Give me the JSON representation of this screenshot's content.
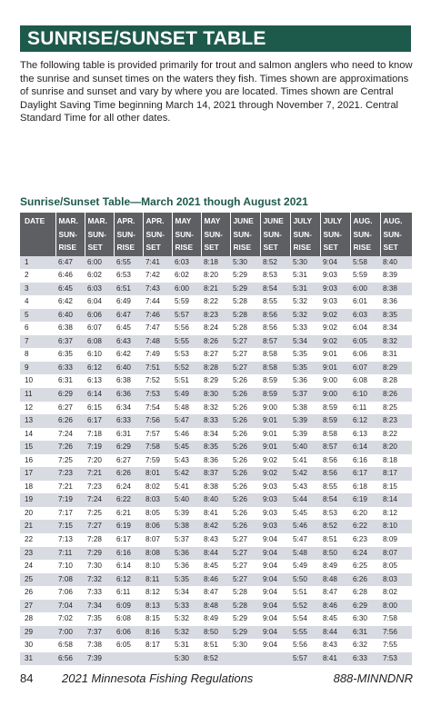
{
  "title": "SUNRISE/SUNSET TABLE",
  "intro": "The following table is provided primarily for trout and salmon anglers who need to know the sunrise and sunset times on the waters they fish. Times shown are approximations of sunrise and sunset and vary by where you are located. Times shown are Central Daylight Saving Time beginning March 14, 2021 through November 7, 2021. Central Standard Time for all other dates.",
  "table_title": "Sunrise/Sunset Table—March 2021 though August 2021",
  "headers": [
    [
      "DATE"
    ],
    [
      "MAR.",
      "SUN-",
      "RISE"
    ],
    [
      "MAR.",
      "SUN-",
      "SET"
    ],
    [
      "APR.",
      "SUN-",
      "RISE"
    ],
    [
      "APR.",
      "SUN-",
      "SET"
    ],
    [
      "MAY",
      "SUN-",
      "RISE"
    ],
    [
      "MAY",
      "SUN-",
      "SET"
    ],
    [
      "JUNE",
      "SUN-",
      "RISE"
    ],
    [
      "JUNE",
      "SUN-",
      "SET"
    ],
    [
      "JULY",
      "SUN-",
      "RISE"
    ],
    [
      "JULY",
      "SUN-",
      "SET"
    ],
    [
      "AUG.",
      "SUN-",
      "RISE"
    ],
    [
      "AUG.",
      "SUN-",
      "SET"
    ]
  ],
  "rows": [
    [
      "1",
      "6:47",
      "6:00",
      "6:55",
      "7:41",
      "6:03",
      "8:18",
      "5:30",
      "8:52",
      "5:30",
      "9:04",
      "5:58",
      "8:40"
    ],
    [
      "2",
      "6:46",
      "6:02",
      "6:53",
      "7:42",
      "6:02",
      "8:20",
      "5:29",
      "8:53",
      "5:31",
      "9:03",
      "5:59",
      "8:39"
    ],
    [
      "3",
      "6:45",
      "6:03",
      "6:51",
      "7:43",
      "6:00",
      "8:21",
      "5:29",
      "8:54",
      "5:31",
      "9:03",
      "6:00",
      "8:38"
    ],
    [
      "4",
      "6:42",
      "6:04",
      "6:49",
      "7:44",
      "5:59",
      "8:22",
      "5:28",
      "8:55",
      "5:32",
      "9:03",
      "6:01",
      "8:36"
    ],
    [
      "5",
      "6:40",
      "6:06",
      "6:47",
      "7:46",
      "5:57",
      "8:23",
      "5:28",
      "8:56",
      "5:32",
      "9:02",
      "6:03",
      "8:35"
    ],
    [
      "6",
      "6:38",
      "6:07",
      "6:45",
      "7:47",
      "5:56",
      "8:24",
      "5:28",
      "8:56",
      "5:33",
      "9:02",
      "6:04",
      "8:34"
    ],
    [
      "7",
      "6:37",
      "6:08",
      "6:43",
      "7:48",
      "5:55",
      "8:26",
      "5:27",
      "8:57",
      "5:34",
      "9:02",
      "6:05",
      "8:32"
    ],
    [
      "8",
      "6:35",
      "6:10",
      "6:42",
      "7:49",
      "5:53",
      "8:27",
      "5:27",
      "8:58",
      "5:35",
      "9:01",
      "6:06",
      "8:31"
    ],
    [
      "9",
      "6:33",
      "6:12",
      "6:40",
      "7:51",
      "5:52",
      "8:28",
      "5:27",
      "8:58",
      "5:35",
      "9:01",
      "6:07",
      "8:29"
    ],
    [
      "10",
      "6:31",
      "6:13",
      "6:38",
      "7:52",
      "5:51",
      "8:29",
      "5:26",
      "8:59",
      "5:36",
      "9:00",
      "6:08",
      "8:28"
    ],
    [
      "11",
      "6:29",
      "6:14",
      "6:36",
      "7:53",
      "5:49",
      "8:30",
      "5:26",
      "8:59",
      "5:37",
      "9:00",
      "6:10",
      "8:26"
    ],
    [
      "12",
      "6:27",
      "6:15",
      "6:34",
      "7:54",
      "5:48",
      "8:32",
      "5:26",
      "9:00",
      "5:38",
      "8:59",
      "6:11",
      "8:25"
    ],
    [
      "13",
      "6:26",
      "6:17",
      "6:33",
      "7:56",
      "5:47",
      "8:33",
      "5:26",
      "9:01",
      "5:39",
      "8:59",
      "6:12",
      "8:23"
    ],
    [
      "14",
      "7:24",
      "7:18",
      "6:31",
      "7:57",
      "5:46",
      "8:34",
      "5:26",
      "9:01",
      "5:39",
      "8:58",
      "6:13",
      "8:22"
    ],
    [
      "15",
      "7:26",
      "7:19",
      "6:29",
      "7:58",
      "5:45",
      "8:35",
      "5:26",
      "9:01",
      "5:40",
      "8:57",
      "6:14",
      "8:20"
    ],
    [
      "16",
      "7:25",
      "7:20",
      "6:27",
      "7:59",
      "5:43",
      "8:36",
      "5:26",
      "9:02",
      "5:41",
      "8:56",
      "6:16",
      "8:18"
    ],
    [
      "17",
      "7:23",
      "7:21",
      "6:26",
      "8:01",
      "5:42",
      "8:37",
      "5:26",
      "9:02",
      "5:42",
      "8:56",
      "6:17",
      "8:17"
    ],
    [
      "18",
      "7:21",
      "7:23",
      "6:24",
      "8:02",
      "5:41",
      "8:38",
      "5:26",
      "9:03",
      "5:43",
      "8:55",
      "6:18",
      "8:15"
    ],
    [
      "19",
      "7:19",
      "7:24",
      "6:22",
      "8:03",
      "5:40",
      "8:40",
      "5:26",
      "9:03",
      "5:44",
      "8:54",
      "6:19",
      "8:14"
    ],
    [
      "20",
      "7:17",
      "7:25",
      "6:21",
      "8:05",
      "5:39",
      "8:41",
      "5:26",
      "9:03",
      "5:45",
      "8:53",
      "6:20",
      "8:12"
    ],
    [
      "21",
      "7:15",
      "7:27",
      "6:19",
      "8:06",
      "5:38",
      "8:42",
      "5:26",
      "9:03",
      "5:46",
      "8:52",
      "6:22",
      "8:10"
    ],
    [
      "22",
      "7:13",
      "7:28",
      "6:17",
      "8:07",
      "5:37",
      "8:43",
      "5:27",
      "9:04",
      "5:47",
      "8:51",
      "6:23",
      "8:09"
    ],
    [
      "23",
      "7:11",
      "7:29",
      "6:16",
      "8:08",
      "5:36",
      "8:44",
      "5:27",
      "9:04",
      "5:48",
      "8:50",
      "6:24",
      "8:07"
    ],
    [
      "24",
      "7:10",
      "7:30",
      "6:14",
      "8:10",
      "5:36",
      "8:45",
      "5:27",
      "9:04",
      "5:49",
      "8:49",
      "6:25",
      "8:05"
    ],
    [
      "25",
      "7:08",
      "7:32",
      "6:12",
      "8:11",
      "5:35",
      "8:46",
      "5:27",
      "9:04",
      "5:50",
      "8:48",
      "6:26",
      "8:03"
    ],
    [
      "26",
      "7:06",
      "7:33",
      "6:11",
      "8:12",
      "5:34",
      "8:47",
      "5:28",
      "9:04",
      "5:51",
      "8:47",
      "6:28",
      "8:02"
    ],
    [
      "27",
      "7:04",
      "7:34",
      "6:09",
      "8:13",
      "5:33",
      "8:48",
      "5:28",
      "9:04",
      "5:52",
      "8:46",
      "6:29",
      "8:00"
    ],
    [
      "28",
      "7:02",
      "7:35",
      "6:08",
      "8:15",
      "5:32",
      "8:49",
      "5:29",
      "9:04",
      "5:54",
      "8:45",
      "6:30",
      "7:58"
    ],
    [
      "29",
      "7:00",
      "7:37",
      "6:06",
      "8:16",
      "5:32",
      "8:50",
      "5:29",
      "9:04",
      "5:55",
      "8:44",
      "6:31",
      "7:56"
    ],
    [
      "30",
      "6:58",
      "7:38",
      "6:05",
      "8:17",
      "5:31",
      "8:51",
      "5:30",
      "9:04",
      "5:56",
      "8:43",
      "6:32",
      "7:55"
    ],
    [
      "31",
      "6:56",
      "7:39",
      "",
      "",
      "5:30",
      "8:52",
      "",
      "",
      "5:57",
      "8:41",
      "6:33",
      "7:53"
    ]
  ],
  "footer": {
    "page": "84",
    "publication": "2021 Minnesota Fishing Regulations",
    "phone": "888-MINNDNR"
  },
  "colors": {
    "title_bar": "#1e5a4c",
    "header_bg": "#5d5f63",
    "stripe": "#d9dbe2"
  }
}
